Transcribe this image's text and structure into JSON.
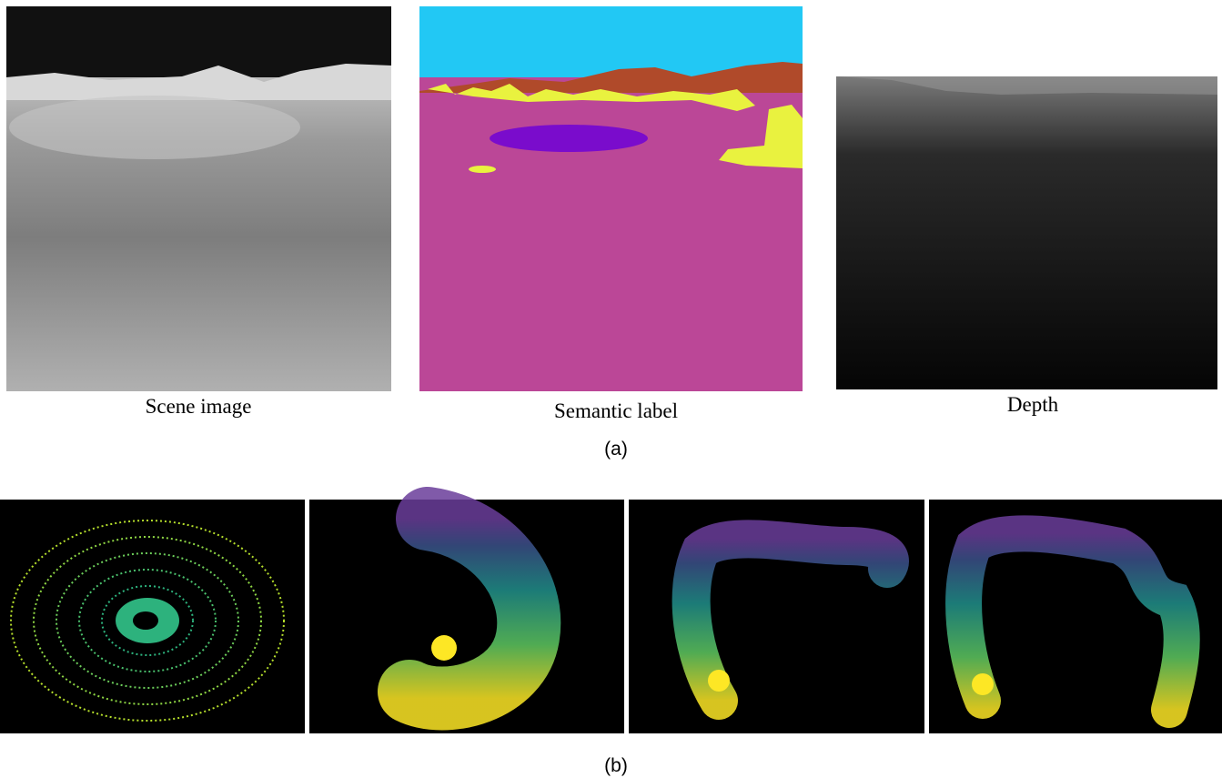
{
  "panel_a": {
    "captions": [
      "Scene image",
      "Semantic label",
      "Depth"
    ],
    "label": "(a)"
  },
  "panel_b": {
    "label": "(b)"
  }
}
